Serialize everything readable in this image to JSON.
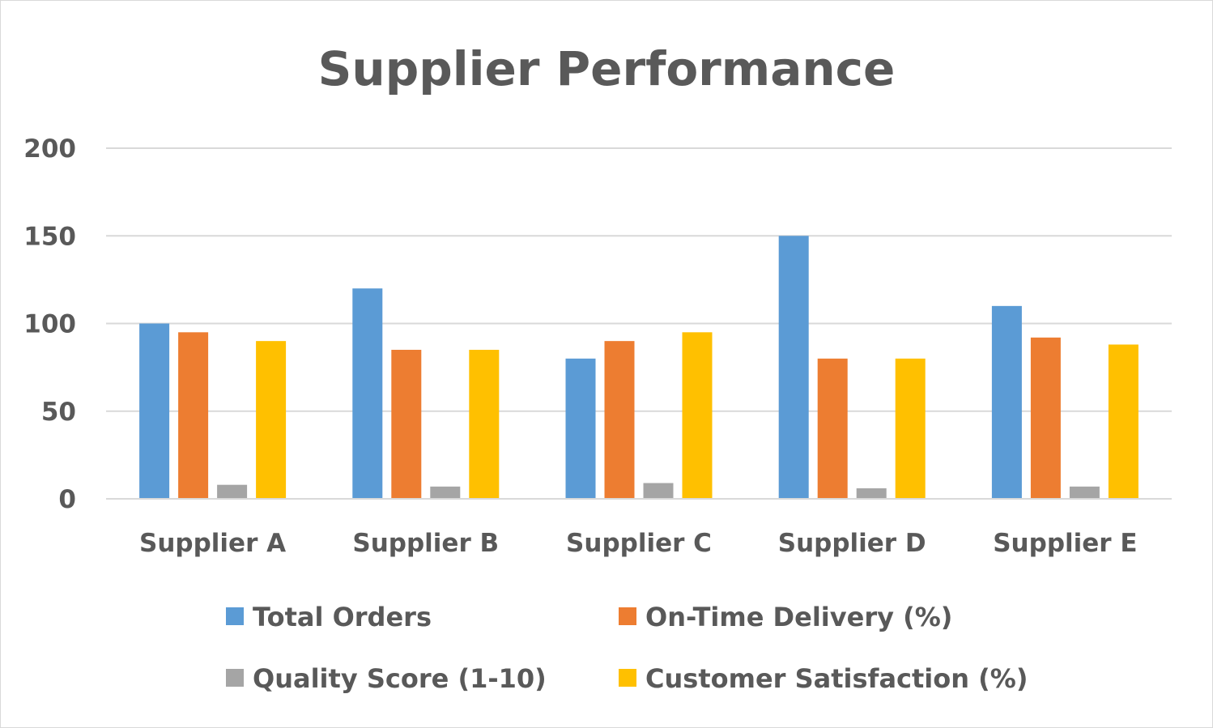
{
  "chart_data": {
    "type": "bar",
    "title": "Supplier Performance",
    "xlabel": "",
    "ylabel": "",
    "ylim": [
      0,
      200
    ],
    "yticks": [
      "0",
      "50",
      "100",
      "150",
      "200"
    ],
    "grid": true,
    "legend_position": "bottom",
    "categories": [
      "Supplier A",
      "Supplier B",
      "Supplier C",
      "Supplier D",
      "Supplier E"
    ],
    "series": [
      {
        "name": "Total Orders",
        "color": "#5b9bd5",
        "values": [
          100,
          120,
          80,
          150,
          110
        ]
      },
      {
        "name": "On-Time Delivery (%)",
        "color": "#ed7d31",
        "values": [
          95,
          85,
          90,
          80,
          92
        ]
      },
      {
        "name": "Quality Score (1-10)",
        "color": "#a5a5a5",
        "values": [
          8,
          7,
          9,
          6,
          7
        ]
      },
      {
        "name": "Customer Satisfaction (%)",
        "color": "#ffc000",
        "values": [
          90,
          85,
          95,
          80,
          88
        ]
      }
    ]
  }
}
